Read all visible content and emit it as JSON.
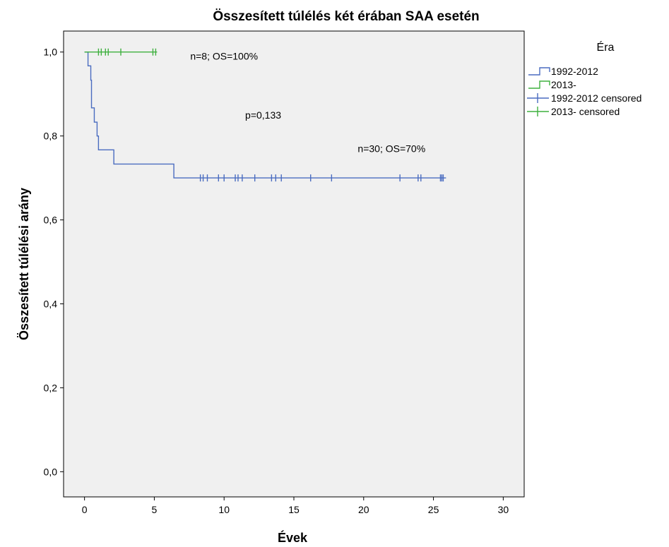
{
  "chart_data": {
    "type": "line",
    "subtype": "kaplan-meier step",
    "title": "Összesített túlélés két érában SAA esetén",
    "xlabel": "Évek",
    "ylabel": "Összesített túlélési arány",
    "xlim": [
      -1.5,
      31.5
    ],
    "ylim": [
      -0.06,
      1.05
    ],
    "x_ticks": [
      0,
      5,
      10,
      15,
      20,
      25,
      30
    ],
    "x_tick_labels": [
      "0",
      "5",
      "10",
      "15",
      "20",
      "25",
      "30"
    ],
    "y_ticks": [
      0.0,
      0.2,
      0.4,
      0.6,
      0.8,
      1.0
    ],
    "y_tick_labels": [
      "0,0",
      "0,2",
      "0,4",
      "0,6",
      "0,8",
      "1,0"
    ],
    "grid": false,
    "plot_background": "#f0f0f0",
    "legend": {
      "title": "Éra",
      "placement": "top-right outside",
      "entries": [
        "1992-2012",
        "2013-",
        "1992-2012 censored",
        "2013- censored"
      ]
    },
    "series": [
      {
        "name": "1992-2012",
        "color": "#4a6cc0",
        "steps": [
          [
            0.0,
            1.0
          ],
          [
            0.25,
            0.967
          ],
          [
            0.45,
            0.933
          ],
          [
            0.5,
            0.867
          ],
          [
            0.7,
            0.833
          ],
          [
            0.9,
            0.8
          ],
          [
            1.0,
            0.767
          ],
          [
            2.1,
            0.733
          ],
          [
            6.4,
            0.7
          ],
          [
            25.9,
            0.7
          ]
        ],
        "censored": [
          8.3,
          8.5,
          8.8,
          9.6,
          10.0,
          10.8,
          11.0,
          11.3,
          12.2,
          13.4,
          13.7,
          14.1,
          16.2,
          17.7,
          22.6,
          23.9,
          24.1,
          25.5,
          25.6,
          25.7
        ]
      },
      {
        "name": "2013-",
        "color": "#3fb03f",
        "steps": [
          [
            0.0,
            1.0
          ],
          [
            5.2,
            1.0
          ]
        ],
        "censored": [
          1.0,
          1.2,
          1.5,
          1.7,
          2.6,
          4.9,
          5.1
        ]
      }
    ],
    "annotations": [
      {
        "text": "n=8; OS=100%",
        "x": 10.0,
        "y": 0.99
      },
      {
        "text": "p=0,133",
        "x": 12.8,
        "y": 0.85
      },
      {
        "text": "n=30; OS=70%",
        "x": 22.0,
        "y": 0.77
      }
    ]
  }
}
